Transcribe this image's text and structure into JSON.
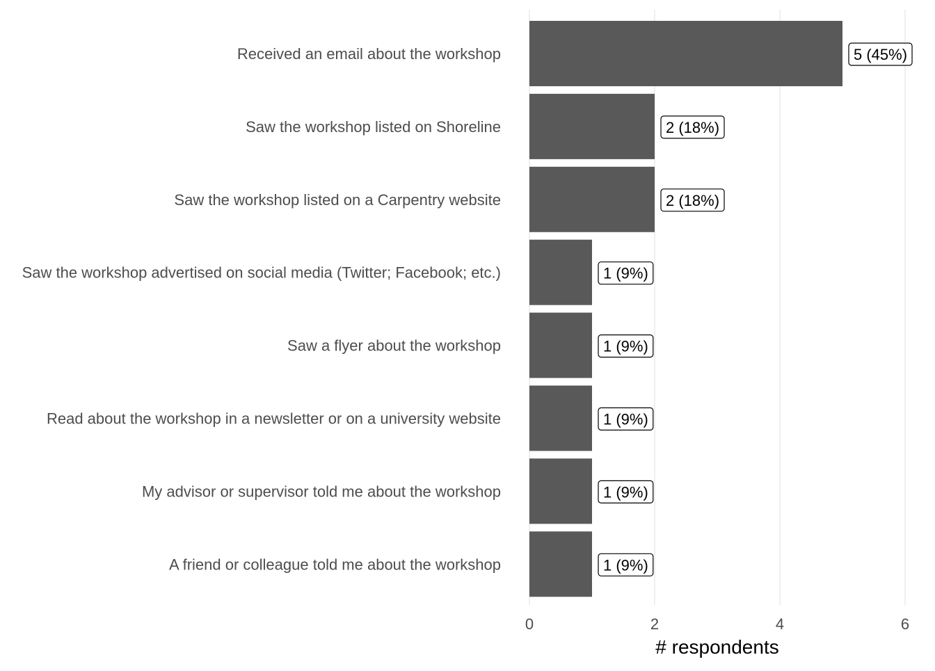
{
  "chart_data": {
    "type": "bar",
    "orientation": "horizontal",
    "categories": [
      "Received an email about the workshop",
      "Saw the workshop listed on Shoreline",
      "Saw the workshop listed on a Carpentry website",
      "Saw the workshop advertised on social media (Twitter; Facebook; etc.)",
      "Saw a flyer about the workshop",
      "Read about the workshop in a newsletter or on a university website",
      "My advisor or supervisor told me about the workshop",
      "A friend or colleague told me about the workshop"
    ],
    "values": [
      5,
      2,
      2,
      1,
      1,
      1,
      1,
      1
    ],
    "data_labels": [
      "5 (45%)",
      "2 (18%)",
      "2 (18%)",
      "1 (9%)",
      "1 (9%)",
      "1 (9%)",
      "1 (9%)",
      "1 (9%)"
    ],
    "xlabel": "# respondents",
    "ylabel": "",
    "xlim": [
      0,
      6
    ],
    "x_ticks": [
      "0",
      "2",
      "4",
      "6"
    ],
    "grid": "vertical major gridlines",
    "legend": "none",
    "colors": {
      "bar": "#595959",
      "gridline": "#ebebeb",
      "label_text": "#4d4d4d"
    }
  }
}
